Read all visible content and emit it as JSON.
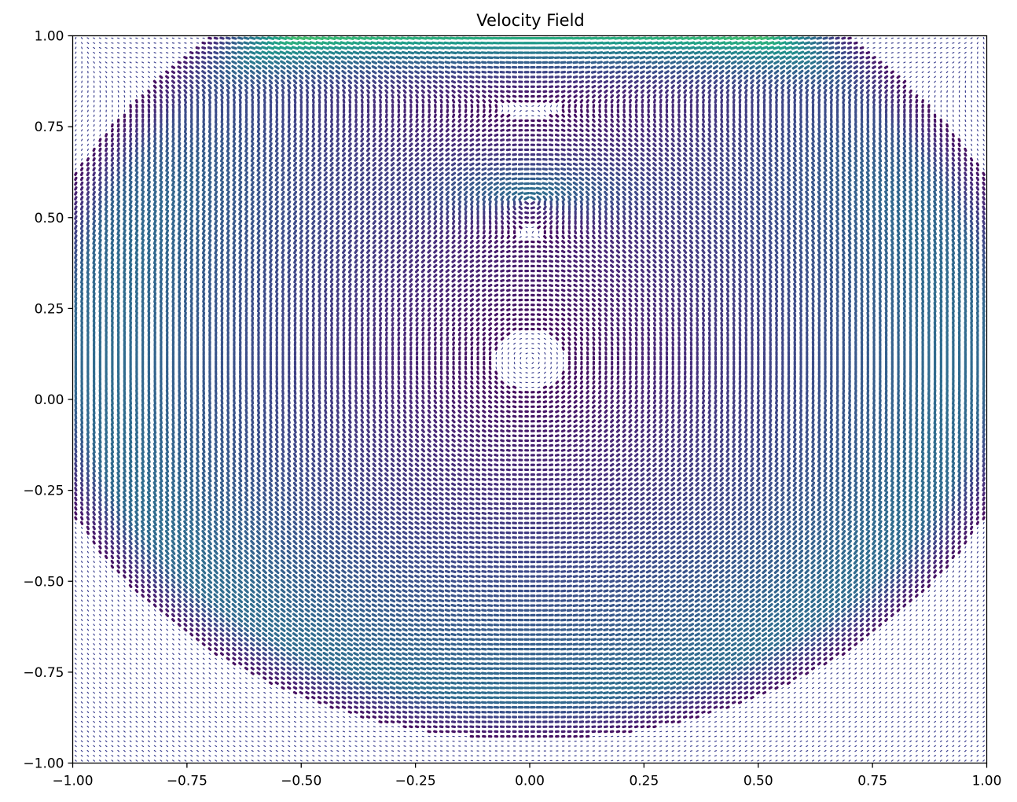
{
  "chart_data": {
    "type": "quiver",
    "title": "Velocity Field",
    "xlabel": "",
    "ylabel": "",
    "xlim": [
      -1.0,
      1.0
    ],
    "ylim": [
      -1.0,
      1.0
    ],
    "xticks": [
      -1.0,
      -0.75,
      -0.5,
      -0.25,
      0.0,
      0.25,
      0.5,
      0.75,
      1.0
    ],
    "yticks": [
      -1.0,
      -0.75,
      -0.5,
      -0.25,
      0.0,
      0.25,
      0.5,
      0.75,
      1.0
    ],
    "xtick_labels": [
      "−1.00",
      "−0.75",
      "−0.50",
      "−0.25",
      "0.00",
      "0.25",
      "0.50",
      "0.75",
      "1.00"
    ],
    "ytick_labels": [
      "−1.00",
      "−0.75",
      "−0.50",
      "−0.25",
      "0.00",
      "0.25",
      "0.50",
      "0.75",
      "1.00"
    ],
    "colormap": "viridis",
    "colormap_stops": [
      "#440154",
      "#482878",
      "#3e4989",
      "#31688e",
      "#26828e",
      "#1f9e89",
      "#35b779",
      "#6ece58",
      "#b5de2b",
      "#fde725"
    ],
    "grid": false,
    "legend": "none",
    "description": "Lid-driven cavity style velocity field; speed highest (yellow) at top lid, secondary vortex near (0, 0.55), main circulation centered near (0, 0.1), slow region below y ≈ -0.8."
  }
}
